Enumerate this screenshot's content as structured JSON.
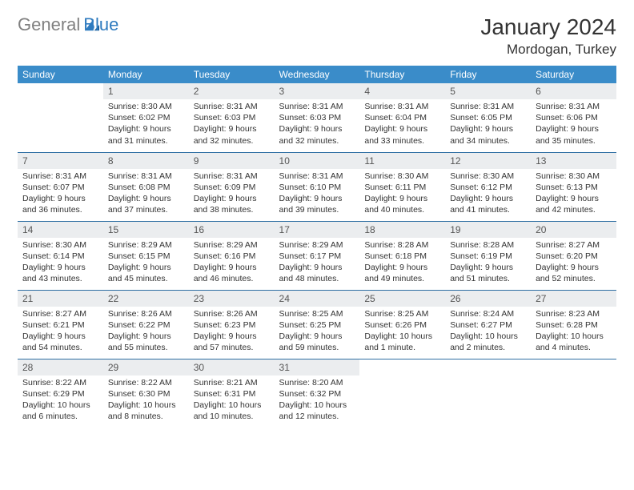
{
  "brand": {
    "part1": "General",
    "part2": "Blue"
  },
  "title": "January 2024",
  "location": "Mordogan, Turkey",
  "colors": {
    "header_bg": "#3a8cc9",
    "header_text": "#ffffff",
    "daynum_bg": "#ebedef",
    "row_border": "#2f6fa3",
    "text": "#333333",
    "logo_gray": "#808080",
    "logo_blue": "#2f7bbf"
  },
  "weekdays": [
    "Sunday",
    "Monday",
    "Tuesday",
    "Wednesday",
    "Thursday",
    "Friday",
    "Saturday"
  ],
  "weeks": [
    [
      null,
      {
        "n": "1",
        "sr": "8:30 AM",
        "ss": "6:02 PM",
        "dl": "9 hours and 31 minutes."
      },
      {
        "n": "2",
        "sr": "8:31 AM",
        "ss": "6:03 PM",
        "dl": "9 hours and 32 minutes."
      },
      {
        "n": "3",
        "sr": "8:31 AM",
        "ss": "6:03 PM",
        "dl": "9 hours and 32 minutes."
      },
      {
        "n": "4",
        "sr": "8:31 AM",
        "ss": "6:04 PM",
        "dl": "9 hours and 33 minutes."
      },
      {
        "n": "5",
        "sr": "8:31 AM",
        "ss": "6:05 PM",
        "dl": "9 hours and 34 minutes."
      },
      {
        "n": "6",
        "sr": "8:31 AM",
        "ss": "6:06 PM",
        "dl": "9 hours and 35 minutes."
      }
    ],
    [
      {
        "n": "7",
        "sr": "8:31 AM",
        "ss": "6:07 PM",
        "dl": "9 hours and 36 minutes."
      },
      {
        "n": "8",
        "sr": "8:31 AM",
        "ss": "6:08 PM",
        "dl": "9 hours and 37 minutes."
      },
      {
        "n": "9",
        "sr": "8:31 AM",
        "ss": "6:09 PM",
        "dl": "9 hours and 38 minutes."
      },
      {
        "n": "10",
        "sr": "8:31 AM",
        "ss": "6:10 PM",
        "dl": "9 hours and 39 minutes."
      },
      {
        "n": "11",
        "sr": "8:30 AM",
        "ss": "6:11 PM",
        "dl": "9 hours and 40 minutes."
      },
      {
        "n": "12",
        "sr": "8:30 AM",
        "ss": "6:12 PM",
        "dl": "9 hours and 41 minutes."
      },
      {
        "n": "13",
        "sr": "8:30 AM",
        "ss": "6:13 PM",
        "dl": "9 hours and 42 minutes."
      }
    ],
    [
      {
        "n": "14",
        "sr": "8:30 AM",
        "ss": "6:14 PM",
        "dl": "9 hours and 43 minutes."
      },
      {
        "n": "15",
        "sr": "8:29 AM",
        "ss": "6:15 PM",
        "dl": "9 hours and 45 minutes."
      },
      {
        "n": "16",
        "sr": "8:29 AM",
        "ss": "6:16 PM",
        "dl": "9 hours and 46 minutes."
      },
      {
        "n": "17",
        "sr": "8:29 AM",
        "ss": "6:17 PM",
        "dl": "9 hours and 48 minutes."
      },
      {
        "n": "18",
        "sr": "8:28 AM",
        "ss": "6:18 PM",
        "dl": "9 hours and 49 minutes."
      },
      {
        "n": "19",
        "sr": "8:28 AM",
        "ss": "6:19 PM",
        "dl": "9 hours and 51 minutes."
      },
      {
        "n": "20",
        "sr": "8:27 AM",
        "ss": "6:20 PM",
        "dl": "9 hours and 52 minutes."
      }
    ],
    [
      {
        "n": "21",
        "sr": "8:27 AM",
        "ss": "6:21 PM",
        "dl": "9 hours and 54 minutes."
      },
      {
        "n": "22",
        "sr": "8:26 AM",
        "ss": "6:22 PM",
        "dl": "9 hours and 55 minutes."
      },
      {
        "n": "23",
        "sr": "8:26 AM",
        "ss": "6:23 PM",
        "dl": "9 hours and 57 minutes."
      },
      {
        "n": "24",
        "sr": "8:25 AM",
        "ss": "6:25 PM",
        "dl": "9 hours and 59 minutes."
      },
      {
        "n": "25",
        "sr": "8:25 AM",
        "ss": "6:26 PM",
        "dl": "10 hours and 1 minute."
      },
      {
        "n": "26",
        "sr": "8:24 AM",
        "ss": "6:27 PM",
        "dl": "10 hours and 2 minutes."
      },
      {
        "n": "27",
        "sr": "8:23 AM",
        "ss": "6:28 PM",
        "dl": "10 hours and 4 minutes."
      }
    ],
    [
      {
        "n": "28",
        "sr": "8:22 AM",
        "ss": "6:29 PM",
        "dl": "10 hours and 6 minutes."
      },
      {
        "n": "29",
        "sr": "8:22 AM",
        "ss": "6:30 PM",
        "dl": "10 hours and 8 minutes."
      },
      {
        "n": "30",
        "sr": "8:21 AM",
        "ss": "6:31 PM",
        "dl": "10 hours and 10 minutes."
      },
      {
        "n": "31",
        "sr": "8:20 AM",
        "ss": "6:32 PM",
        "dl": "10 hours and 12 minutes."
      },
      null,
      null,
      null
    ]
  ]
}
